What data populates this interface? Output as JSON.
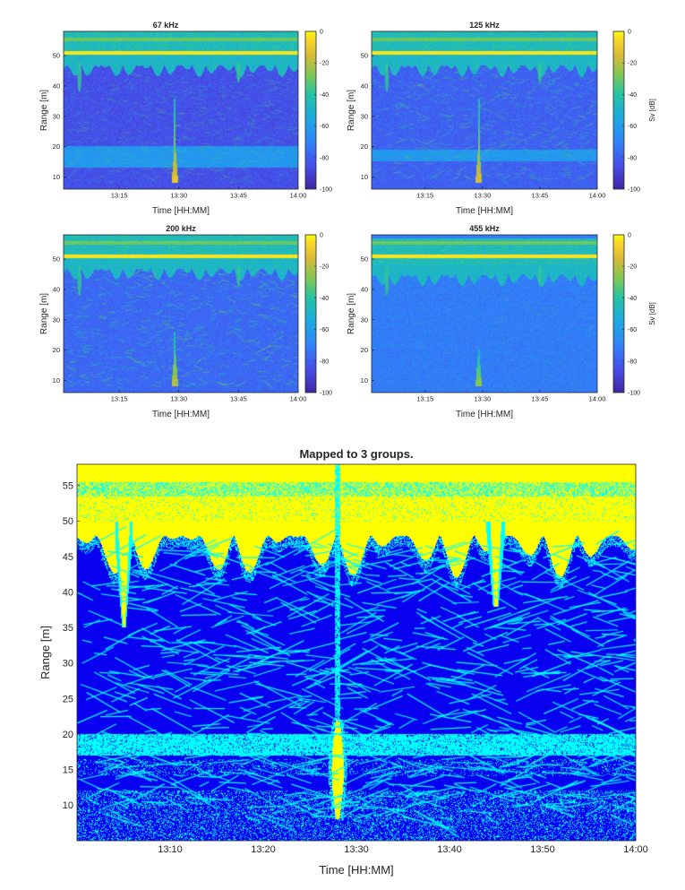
{
  "chart_data": [
    {
      "type": "heatmap",
      "title": "67 kHz",
      "xlabel": "Time [HH:MM]",
      "ylabel": "Range [m]",
      "x_ticks": [
        "13:15",
        "13:30",
        "13:45",
        "14:00"
      ],
      "y_ticks": [
        "10",
        "20",
        "30",
        "40",
        "50"
      ],
      "xlim": [
        "13:01",
        "14:00"
      ],
      "ylim": [
        6,
        58
      ],
      "colorbar": {
        "label": "",
        "ticks": [
          "0",
          "-20",
          "-40",
          "-60",
          "-80",
          "-100"
        ],
        "range": [
          -100,
          0
        ]
      },
      "colormap": "parula",
      "features": {
        "surface_line_range": 51,
        "surface_band_range": [
          50,
          58
        ],
        "scattering_layer_range": [
          13,
          20
        ],
        "vertical_plume": {
          "time": "13:29",
          "range": [
            8,
            36
          ]
        },
        "background_level_db": -85
      }
    },
    {
      "type": "heatmap",
      "title": "125 kHz",
      "xlabel": "Time [HH:MM]",
      "ylabel": "Range [m]",
      "x_ticks": [
        "13:15",
        "13:30",
        "13:45",
        "14:00"
      ],
      "y_ticks": [
        "10",
        "20",
        "30",
        "40",
        "50"
      ],
      "xlim": [
        "13:01",
        "14:00"
      ],
      "ylim": [
        6,
        58
      ],
      "colorbar": {
        "label": "Sv [dB]",
        "ticks": [
          "0",
          "-20",
          "-40",
          "-60",
          "-80",
          "-100"
        ],
        "range": [
          -100,
          0
        ]
      },
      "colormap": "parula",
      "features": {
        "surface_line_range": 51,
        "surface_band_range": [
          50,
          58
        ],
        "scattering_layer_range": [
          15,
          19
        ],
        "vertical_plume": {
          "time": "13:29",
          "range": [
            8,
            36
          ]
        },
        "background_level_db": -80
      }
    },
    {
      "type": "heatmap",
      "title": "200 kHz",
      "xlabel": "Time [HH:MM]",
      "ylabel": "Range [m]",
      "x_ticks": [
        "13:15",
        "13:30",
        "13:45",
        "14:00"
      ],
      "y_ticks": [
        "10",
        "20",
        "30",
        "40",
        "50"
      ],
      "xlim": [
        "13:01",
        "14:00"
      ],
      "ylim": [
        6,
        58
      ],
      "colorbar": {
        "label": "",
        "ticks": [
          "0",
          "-20",
          "-40",
          "-60",
          "-80",
          "-100"
        ],
        "range": [
          -100,
          0
        ]
      },
      "colormap": "parula",
      "features": {
        "surface_line_range": 51,
        "surface_band_range": [
          50,
          58
        ],
        "vertical_plume": {
          "time": "13:29",
          "range": [
            8,
            26
          ]
        },
        "background_level_db": -78
      }
    },
    {
      "type": "heatmap",
      "title": "455 kHz",
      "xlabel": "Time [HH:MM]",
      "ylabel": "Range [m]",
      "x_ticks": [
        "13:15",
        "13:30",
        "13:45",
        "14:00"
      ],
      "y_ticks": [
        "10",
        "20",
        "30",
        "40",
        "50"
      ],
      "xlim": [
        "13:01",
        "14:00"
      ],
      "ylim": [
        6,
        58
      ],
      "colorbar": {
        "label": "Sv [dB]",
        "ticks": [
          "0",
          "-20",
          "-40",
          "-60",
          "-80",
          "-100"
        ],
        "range": [
          -100,
          0
        ]
      },
      "colormap": "parula",
      "features": {
        "surface_line_range": 51,
        "surface_band_range": [
          48,
          57
        ],
        "vertical_plume": {
          "time": "13:29",
          "range": [
            8,
            20
          ]
        },
        "background_level_db": -72
      }
    },
    {
      "type": "heatmap",
      "title": "Mapped to 3 groups.",
      "xlabel": "Time [HH:MM]",
      "ylabel": "Range [m]",
      "x_ticks": [
        "13:10",
        "13:20",
        "13:30",
        "13:40",
        "13:50",
        "14:00"
      ],
      "y_ticks": [
        "10",
        "15",
        "20",
        "25",
        "30",
        "35",
        "40",
        "45",
        "50",
        "55"
      ],
      "xlim": [
        "13:00",
        "14:00"
      ],
      "ylim": [
        5,
        58
      ],
      "groups": 3,
      "group_colors": [
        "#0a00f0",
        "#00ffff",
        "#ffff00"
      ],
      "features": {
        "surface_band_range": [
          50,
          58
        ],
        "scattering_layer_range": [
          17,
          20
        ],
        "vertical_plume": {
          "time": "13:28",
          "range": [
            8,
            58
          ]
        },
        "plumes": [
          {
            "time": "13:05",
            "range": [
              35,
              50
            ]
          },
          {
            "time": "13:45",
            "range": [
              38,
              50
            ]
          }
        ]
      }
    }
  ]
}
